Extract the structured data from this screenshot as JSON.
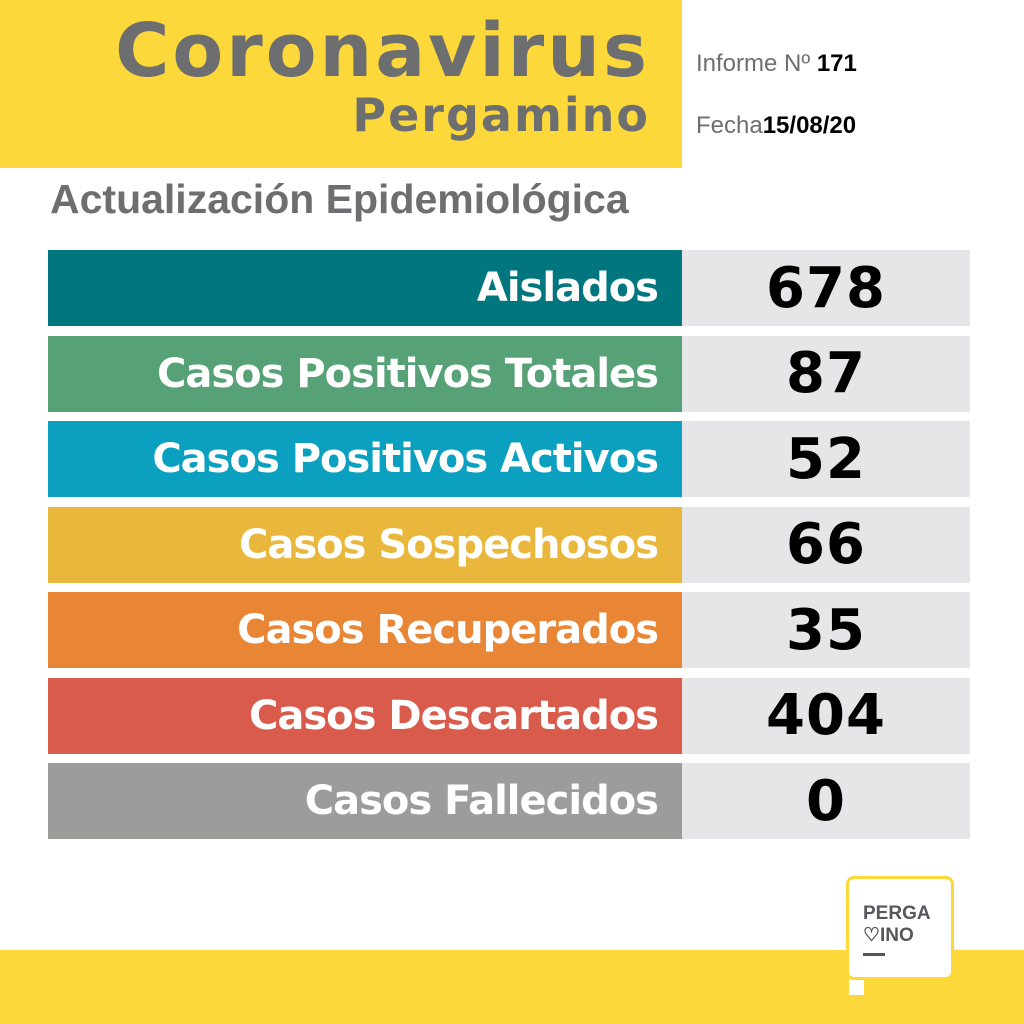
{
  "header": {
    "title": "Coronavirus",
    "subtitle": "Pergamino",
    "informe_label": "Informe Nº",
    "informe_value": "171",
    "fecha_label": "Fecha",
    "fecha_value": "15/08/20"
  },
  "section_title": "Actualización Epidemiológica",
  "stats": [
    {
      "label": "Aislados",
      "value": "678",
      "color": "#02767f"
    },
    {
      "label": "Casos Positivos Totales",
      "value": "87",
      "color": "#57a176"
    },
    {
      "label": "Casos Positivos Activos",
      "value": "52",
      "color": "#0ba0bf"
    },
    {
      "label": "Casos Sospechosos",
      "value": "66",
      "color": "#e9b73b"
    },
    {
      "label": "Casos Recuperados",
      "value": "35",
      "color": "#e88636"
    },
    {
      "label": "Casos Descartados",
      "value": "404",
      "color": "#d95b4b"
    },
    {
      "label": "Casos Fallecidos",
      "value": "0",
      "color": "#9c9c9b"
    }
  ],
  "logo": {
    "line1": "PERGA",
    "line2": "♡INO"
  },
  "colors": {
    "brand_yellow": "#fdd83a",
    "text_gray": "#6d6e70",
    "value_bg": "#e6e6e8"
  }
}
